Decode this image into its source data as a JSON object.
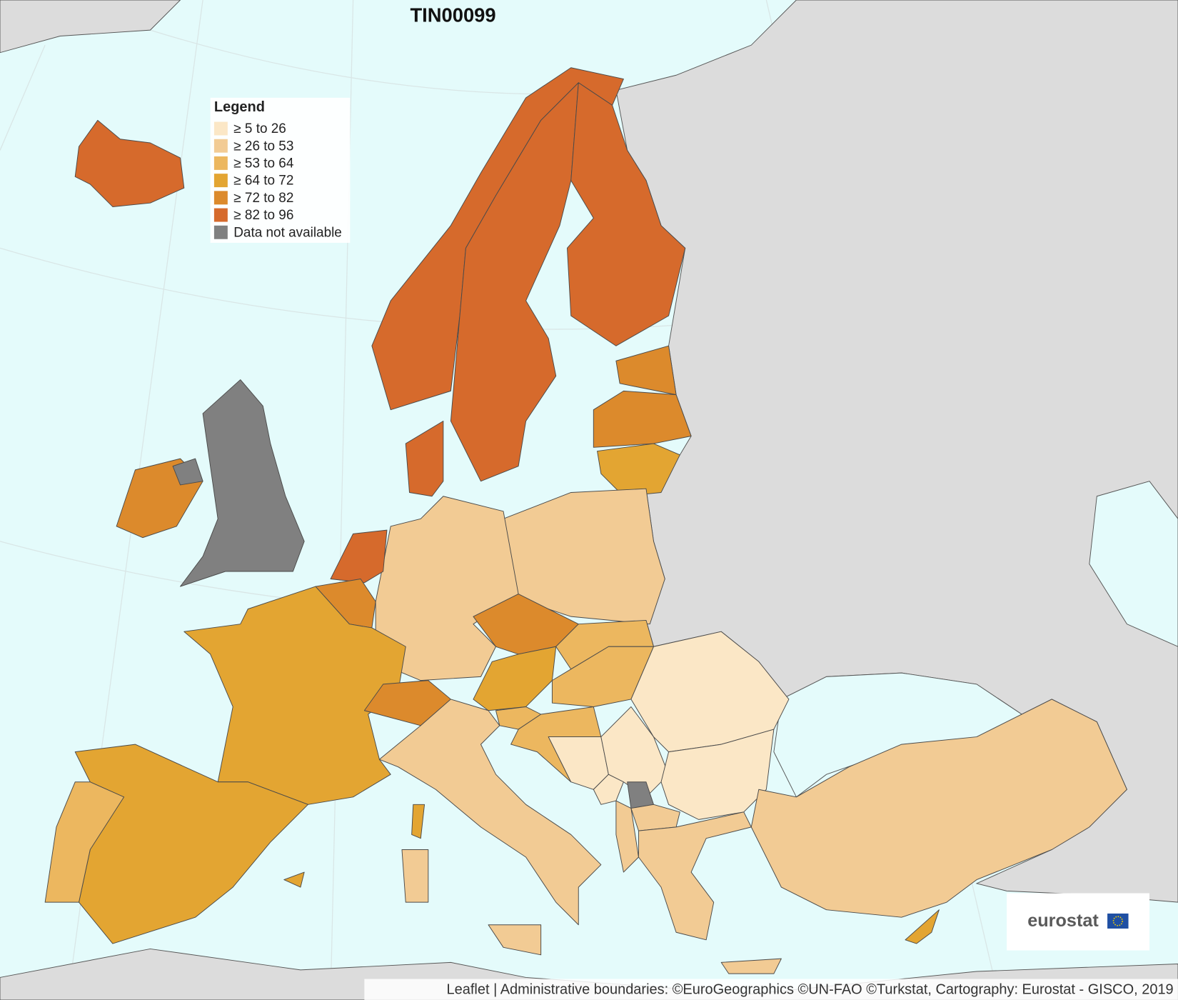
{
  "title": "TIN00099",
  "legend": {
    "title": "Legend",
    "items": [
      {
        "label": "≥ 5 to 26",
        "color": "#fbe7c6"
      },
      {
        "label": "≥ 26 to 53",
        "color": "#f2cb94"
      },
      {
        "label": "≥ 53 to 64",
        "color": "#ecb75f"
      },
      {
        "label": "≥ 64 to 72",
        "color": "#e3a532"
      },
      {
        "label": "≥ 72 to 82",
        "color": "#dc8a2c"
      },
      {
        "label": "≥ 82 to 96",
        "color": "#d66a2c"
      },
      {
        "label": "Data not available",
        "color": "#808080"
      }
    ]
  },
  "logo": "eurostat",
  "attribution": "Leaflet | Administrative boundaries: ©EuroGeographics ©UN-FAO ©Turkstat, Cartography: Eurostat - GISCO, 2019"
}
